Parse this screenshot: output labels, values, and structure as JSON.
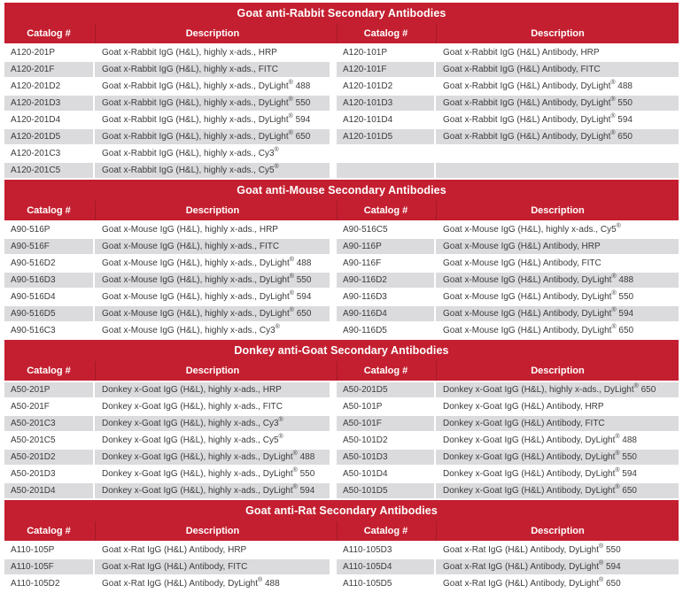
{
  "colors": {
    "brand_red": "#C41F30",
    "row_alt_gray": "#DBDBDD",
    "text_ink": "#3B3B3E"
  },
  "columns": [
    "Catalog #",
    "Description",
    "Catalog #",
    "Description"
  ],
  "sections": [
    {
      "title": "Goat anti-Rabbit Secondary Antibodies",
      "rows": [
        [
          "A120-201P",
          "Goat x-Rabbit IgG (H&L), highly x-ads., HRP",
          "A120-101P",
          "Goat x-Rabbit IgG (H&L) Antibody, HRP"
        ],
        [
          "A120-201F",
          "Goat x-Rabbit IgG (H&L), highly x-ads., FITC",
          "A120-101F",
          "Goat x-Rabbit IgG (H&L) Antibody, FITC"
        ],
        [
          "A120-201D2",
          "Goat x-Rabbit IgG (H&L), highly x-ads., DyLight® 488",
          "A120-101D2",
          "Goat x-Rabbit IgG (H&L) Antibody, DyLight® 488"
        ],
        [
          "A120-201D3",
          "Goat x-Rabbit IgG (H&L), highly x-ads., DyLight® 550",
          "A120-101D3",
          "Goat x-Rabbit IgG (H&L) Antibody, DyLight® 550"
        ],
        [
          "A120-201D4",
          "Goat x-Rabbit IgG (H&L), highly x-ads., DyLight® 594",
          "A120-101D4",
          "Goat x-Rabbit IgG (H&L) Antibody, DyLight® 594"
        ],
        [
          "A120-201D5",
          "Goat x-Rabbit IgG (H&L), highly x-ads., DyLight® 650",
          "A120-101D5",
          "Goat x-Rabbit IgG (H&L) Antibody, DyLight® 650"
        ],
        [
          "A120-201C3",
          "Goat x-Rabbit IgG (H&L), highly x-ads., Cy3®",
          "",
          ""
        ],
        [
          "A120-201C5",
          "Goat x-Rabbit IgG (H&L), highly x-ads., Cy5®",
          "",
          ""
        ]
      ]
    },
    {
      "title": "Goat anti-Mouse Secondary Antibodies",
      "rows": [
        [
          "A90-516P",
          "Goat x-Mouse IgG (H&L), highly x-ads., HRP",
          "A90-516C5",
          "Goat x-Mouse IgG (H&L), highly x-ads., Cy5®"
        ],
        [
          "A90-516F",
          "Goat x-Mouse IgG (H&L), highly x-ads., FITC",
          "A90-116P",
          "Goat x-Mouse IgG (H&L) Antibody, HRP"
        ],
        [
          "A90-516D2",
          "Goat x-Mouse IgG (H&L), highly x-ads., DyLight® 488",
          "A90-116F",
          "Goat x-Mouse IgG (H&L) Antibody, FITC"
        ],
        [
          "A90-516D3",
          "Goat x-Mouse IgG (H&L), highly x-ads., DyLight® 550",
          "A90-116D2",
          "Goat x-Mouse IgG (H&L) Antibody, DyLight® 488"
        ],
        [
          "A90-516D4",
          "Goat x-Mouse IgG (H&L), highly x-ads., DyLight® 594",
          "A90-116D3",
          "Goat x-Mouse IgG (H&L) Antibody, DyLight® 550"
        ],
        [
          "A90-516D5",
          "Goat x-Mouse IgG (H&L), highly x-ads., DyLight® 650",
          "A90-116D4",
          "Goat x-Mouse IgG (H&L) Antibody, DyLight® 594"
        ],
        [
          "A90-516C3",
          "Goat x-Mouse IgG (H&L), highly x-ads., Cy3®",
          "A90-116D5",
          "Goat x-Mouse IgG (H&L) Antibody, DyLight® 650"
        ]
      ]
    },
    {
      "title": "Donkey anti-Goat Secondary Antibodies",
      "rows": [
        [
          "A50-201P",
          "Donkey x-Goat IgG (H&L), highly x-ads., HRP",
          "A50-201D5",
          "Donkey x-Goat IgG (H&L), highly x-ads., DyLight® 650"
        ],
        [
          "A50-201F",
          "Donkey x-Goat IgG (H&L), highly x-ads., FITC",
          "A50-101P",
          "Donkey x-Goat IgG (H&L) Antibody, HRP"
        ],
        [
          "A50-201C3",
          "Donkey x-Goat IgG (H&L), highly x-ads., Cy3®",
          "A50-101F",
          "Donkey x-Goat IgG (H&L) Antibody, FITC"
        ],
        [
          "A50-201C5",
          "Donkey x-Goat IgG (H&L), highly x-ads., Cy5®",
          "A50-101D2",
          "Donkey x-Goat IgG (H&L) Antibody, DyLight® 488"
        ],
        [
          "A50-201D2",
          "Donkey x-Goat IgG (H&L), highly x-ads., DyLight® 488",
          "A50-101D3",
          "Donkey x-Goat IgG (H&L) Antibody, DyLight® 550"
        ],
        [
          "A50-201D3",
          "Donkey x-Goat IgG (H&L), highly x-ads., DyLight® 550",
          "A50-101D4",
          "Donkey x-Goat IgG (H&L) Antibody, DyLight® 594"
        ],
        [
          "A50-201D4",
          "Donkey x-Goat IgG (H&L), highly x-ads., DyLight® 594",
          "A50-101D5",
          "Donkey x-Goat IgG (H&L) Antibody, DyLight® 650"
        ]
      ]
    },
    {
      "title": "Goat anti-Rat Secondary Antibodies",
      "rows": [
        [
          "A110-105P",
          "Goat x-Rat IgG (H&L) Antibody, HRP",
          "A110-105D3",
          "Goat x-Rat IgG (H&L) Antibody, DyLight® 550"
        ],
        [
          "A110-105F",
          "Goat x-Rat IgG (H&L) Antibody, FITC",
          "A110-105D4",
          "Goat x-Rat IgG (H&L) Antibody, DyLight® 594"
        ],
        [
          "A110-105D2",
          "Goat x-Rat IgG (H&L) Antibody, DyLight® 488",
          "A110-105D5",
          "Goat x-Rat IgG (H&L) Antibody, DyLight® 650"
        ]
      ]
    }
  ]
}
